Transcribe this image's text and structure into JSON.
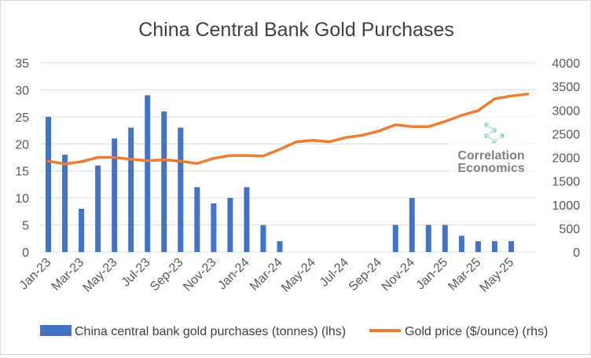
{
  "chart_data": {
    "type": "bar+line",
    "title": "China Central Bank Gold Purchases",
    "categories": [
      "Jan-23",
      "Feb-23",
      "Mar-23",
      "Apr-23",
      "May-23",
      "Jun-23",
      "Jul-23",
      "Aug-23",
      "Sep-23",
      "Oct-23",
      "Nov-23",
      "Dec-23",
      "Jan-24",
      "Feb-24",
      "Mar-24",
      "Apr-24",
      "May-24",
      "Jun-24",
      "Jul-24",
      "Aug-24",
      "Sep-24",
      "Oct-24",
      "Nov-24",
      "Dec-24",
      "Jan-25",
      "Feb-25",
      "Mar-25",
      "Apr-25",
      "May-25",
      "Jun-25"
    ],
    "x_tick_labels": [
      "Jan-23",
      "Mar-23",
      "May-23",
      "Jul-23",
      "Sep-23",
      "Nov-23",
      "Jan-24",
      "Mar-24",
      "May-24",
      "Jul-24",
      "Sep-24",
      "Nov-24",
      "Jan-25",
      "Mar-25",
      "May-25"
    ],
    "series": [
      {
        "name": "China central bank gold purchases (tonnes) (lhs)",
        "type": "bar",
        "axis": "left",
        "color": "#4472C4",
        "values": [
          25,
          18,
          8,
          16,
          21,
          23,
          29,
          26,
          23,
          12,
          9,
          10,
          12,
          5,
          2,
          0,
          0,
          0,
          0,
          0,
          0,
          5,
          10,
          5,
          5,
          3,
          2,
          2,
          2,
          null
        ]
      },
      {
        "name": "Gold price ($/ounce) (rhs)",
        "type": "line",
        "axis": "right",
        "color": "#ED7D31",
        "values": [
          1920,
          1860,
          1910,
          2000,
          2000,
          1960,
          1930,
          1950,
          1920,
          1870,
          1980,
          2040,
          2040,
          2030,
          2170,
          2330,
          2360,
          2330,
          2420,
          2470,
          2560,
          2690,
          2650,
          2650,
          2760,
          2890,
          2990,
          3240,
          3300,
          3340
        ]
      }
    ],
    "y_left": {
      "ylim": [
        0,
        35
      ],
      "ticks": [
        "0",
        "5",
        "10",
        "15",
        "20",
        "25",
        "30",
        "35"
      ]
    },
    "y_right": {
      "ylim": [
        0,
        4000
      ],
      "ticks": [
        "0",
        "500",
        "1000",
        "1500",
        "2000",
        "2500",
        "3000",
        "3500",
        "4000"
      ]
    },
    "legend_position": "bottom",
    "grid": true
  },
  "watermark": {
    "line1": "Correlation",
    "line2": "Economics"
  }
}
